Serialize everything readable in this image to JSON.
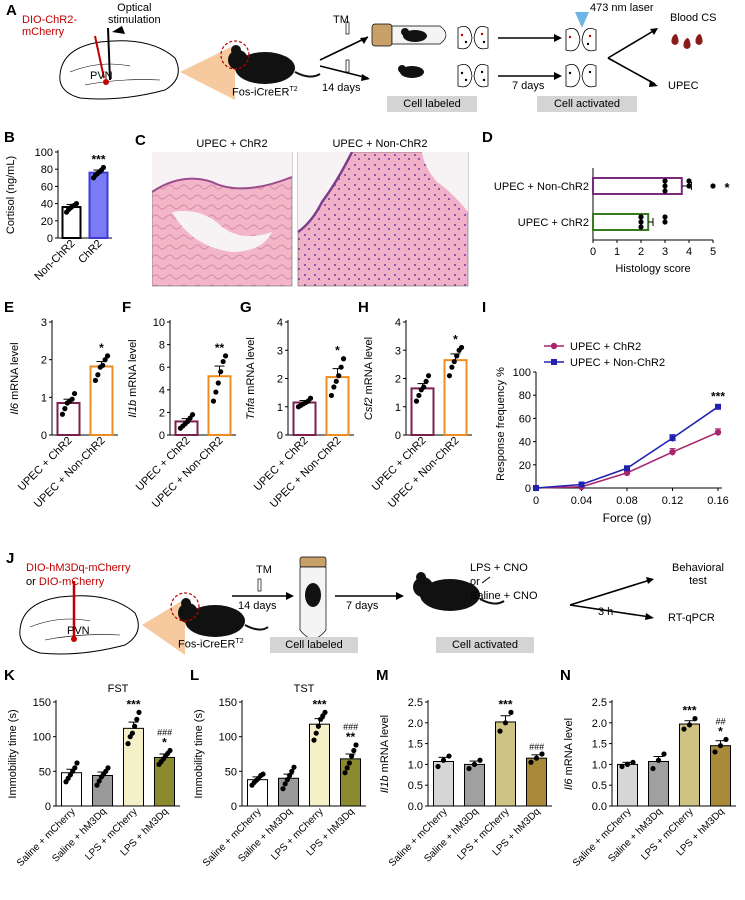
{
  "panels": {
    "A": {
      "letter": "A",
      "virus": "DIO-ChR2-\nmCherry",
      "stim": "Optical\nstimulation",
      "pvn": "PVN",
      "mouse": "Fos-iCreER",
      "mouse_sup": "T2",
      "tm": "TM",
      "days14": "14 days",
      "days7": "7 days",
      "laser": "473 nm laser",
      "blood": "Blood CS",
      "upec": "UPEC",
      "labeled": "Cell labeled",
      "activated": "Cell activated"
    },
    "J": {
      "letter": "J",
      "virus1": "DIO-hM3Dq-mCherry",
      "or": "or ",
      "virus2": "DIO-mCherry",
      "pvn": "PVN",
      "mouse": "Fos-iCreER",
      "mouse_sup": "T2",
      "tm": "TM",
      "days14": "14 days",
      "days7": "7 days",
      "treat1": "LPS + CNO",
      "treat_or": "or",
      "treat2": "Saline + CNO",
      "hours": "3 h",
      "out1": "Behavioral\ntest",
      "out2": "RT-qPCR",
      "labeled": "Cell labeled",
      "activated": "Cell activated"
    },
    "C": {
      "letter": "C",
      "left_title": "UPEC + ChR2",
      "right_title": "UPEC + Non-ChR2"
    }
  },
  "chart_data": [
    {
      "id": "B",
      "letter": "B",
      "type": "bar",
      "ylabel": "Cortisol (ng/mL)",
      "categories": [
        "Non-ChR2",
        "ChR2"
      ],
      "values": [
        36,
        76
      ],
      "err": [
        3,
        3
      ],
      "points": [
        [
          30,
          33,
          35,
          37,
          38,
          40
        ],
        [
          70,
          73,
          75,
          77,
          79,
          82
        ]
      ],
      "ylim": [
        0,
        100
      ],
      "yticks": [
        0,
        20,
        40,
        60,
        80,
        100
      ],
      "stars": [
        "",
        "***"
      ],
      "fills": [
        "#ffffff",
        "#7b7bf5"
      ],
      "strokes": [
        "#000000",
        "#3d3dd6"
      ]
    },
    {
      "id": "D",
      "letter": "D",
      "type": "bar-horizontal",
      "xlabel": "Histology score",
      "categories": [
        "UPEC + Non-ChR2",
        "UPEC + ChR2"
      ],
      "values": [
        3.7,
        2.3
      ],
      "err": [
        0.4,
        0.2
      ],
      "points": [
        [
          3,
          3,
          3,
          4,
          4,
          5
        ],
        [
          2,
          2,
          2,
          2,
          3,
          3
        ]
      ],
      "xlim": [
        0,
        5
      ],
      "xticks": [
        0,
        1,
        2,
        3,
        4,
        5
      ],
      "stars": [
        "*",
        ""
      ],
      "strokes": [
        "#7b2a7b",
        "#3a7a1e"
      ]
    },
    {
      "id": "E",
      "letter": "E",
      "type": "bar",
      "ylabel_italic": "Il6",
      "ylabel_rest": " mRNA level",
      "categories": [
        "UPEC + ChR2",
        "UPEC + Non-ChR2"
      ],
      "values": [
        0.85,
        1.82
      ],
      "err": [
        0.1,
        0.13
      ],
      "points": [
        [
          0.55,
          0.7,
          0.85,
          0.9,
          0.95,
          1.1
        ],
        [
          1.45,
          1.6,
          1.8,
          1.85,
          2.0,
          2.1
        ]
      ],
      "ylim": [
        0,
        3
      ],
      "yticks": [
        0,
        1,
        2,
        3
      ],
      "stars": [
        "",
        "*"
      ],
      "strokes": [
        "#7b1f4d",
        "#f08c1e"
      ]
    },
    {
      "id": "F",
      "letter": "F",
      "type": "bar",
      "ylabel_italic": "Il1b",
      "ylabel_rest": " mRNA level",
      "categories": [
        "UPEC + ChR2",
        "UPEC + Non-ChR2"
      ],
      "values": [
        1.2,
        5.2
      ],
      "err": [
        0.25,
        0.9
      ],
      "points": [
        [
          0.6,
          0.8,
          1.0,
          1.2,
          1.5,
          1.8
        ],
        [
          3.0,
          3.8,
          4.6,
          5.6,
          6.5,
          7.0
        ]
      ],
      "ylim": [
        0,
        10
      ],
      "yticks": [
        0,
        2,
        4,
        6,
        8,
        10
      ],
      "stars": [
        "",
        "**"
      ],
      "strokes": [
        "#7b1f4d",
        "#f08c1e"
      ]
    },
    {
      "id": "G",
      "letter": "G",
      "type": "bar",
      "ylabel_italic": "Tnfa",
      "ylabel_rest": " mRNA level",
      "categories": [
        "UPEC + ChR2",
        "UPEC + Non-ChR2"
      ],
      "values": [
        1.15,
        2.05
      ],
      "err": [
        0.07,
        0.3
      ],
      "points": [
        [
          1.0,
          1.05,
          1.1,
          1.15,
          1.2,
          1.3
        ],
        [
          1.4,
          1.7,
          1.9,
          2.1,
          2.4,
          2.7
        ]
      ],
      "ylim": [
        0,
        4
      ],
      "yticks": [
        0,
        1,
        2,
        3,
        4
      ],
      "stars": [
        "",
        "*"
      ],
      "strokes": [
        "#7b1f4d",
        "#f08c1e"
      ]
    },
    {
      "id": "H",
      "letter": "H",
      "type": "bar",
      "ylabel_italic": "Csf2",
      "ylabel_rest": " mRNA level",
      "categories": [
        "UPEC + ChR2",
        "UPEC + Non-ChR2"
      ],
      "values": [
        1.65,
        2.65
      ],
      "err": [
        0.17,
        0.22
      ],
      "points": [
        [
          1.2,
          1.4,
          1.6,
          1.7,
          1.9,
          2.1
        ],
        [
          2.1,
          2.4,
          2.6,
          2.8,
          3.0,
          3.1
        ]
      ],
      "ylim": [
        0,
        4
      ],
      "yticks": [
        0,
        1,
        2,
        3,
        4
      ],
      "stars": [
        "",
        "*"
      ],
      "strokes": [
        "#7b1f4d",
        "#f08c1e"
      ]
    },
    {
      "id": "I",
      "letter": "I",
      "type": "line",
      "xlabel": "Force (g)",
      "ylabel": "Response frequency %",
      "x": [
        0,
        0.04,
        0.08,
        0.12,
        0.16
      ],
      "xtick_labels": [
        "0",
        "0.04",
        "0.08",
        "0.12",
        "0.16"
      ],
      "ylim": [
        0,
        100
      ],
      "yticks": [
        0,
        20,
        40,
        60,
        80,
        100
      ],
      "series": [
        {
          "name": "UPEC + ChR2",
          "values": [
            0,
            1,
            13,
            31,
            48
          ],
          "err": [
            0,
            0.5,
            2,
            3,
            3
          ],
          "color": "#a8246e",
          "marker": "circle"
        },
        {
          "name": "UPEC + Non-ChR2",
          "values": [
            0,
            3,
            17,
            43,
            70
          ],
          "err": [
            0,
            1,
            2,
            3,
            2
          ],
          "color": "#2222b0",
          "marker": "square"
        }
      ],
      "annotation": "***"
    },
    {
      "id": "K",
      "letter": "K",
      "type": "bar",
      "title": "FST",
      "ylabel": "Immobility time (s)",
      "categories": [
        "Saline + mCherry",
        "Saline + hM3Dq",
        "LPS + mCherry",
        "LPS + hM3Dq"
      ],
      "values": [
        48,
        44,
        112,
        70
      ],
      "err": [
        5,
        5,
        9,
        5
      ],
      "points": [
        [
          35,
          40,
          45,
          50,
          55,
          62
        ],
        [
          30,
          36,
          42,
          46,
          50,
          55
        ],
        [
          90,
          100,
          105,
          115,
          125,
          135
        ],
        [
          60,
          64,
          68,
          72,
          76,
          80
        ]
      ],
      "ylim": [
        0,
        150
      ],
      "yticks": [
        0,
        50,
        100,
        150
      ],
      "stars": [
        "",
        "",
        "***",
        "*"
      ],
      "hashes": [
        "",
        "",
        "",
        "###"
      ],
      "fills": [
        "#ffffff",
        "#9a9a9a",
        "#f5f0c8",
        "#8c8a2e"
      ]
    },
    {
      "id": "L",
      "letter": "L",
      "type": "bar",
      "title": "TST",
      "ylabel": "Immobility time (s)",
      "categories": [
        "Saline + mCherry",
        "Saline + hM3Dq",
        "LPS + mCherry",
        "LPS + hM3Dq"
      ],
      "values": [
        38,
        40,
        118,
        68
      ],
      "err": [
        4,
        6,
        8,
        7
      ],
      "points": [
        [
          30,
          34,
          37,
          40,
          44,
          46
        ],
        [
          25,
          32,
          38,
          44,
          50,
          56
        ],
        [
          95,
          105,
          115,
          125,
          130,
          135
        ],
        [
          48,
          55,
          62,
          72,
          80,
          88
        ]
      ],
      "ylim": [
        0,
        150
      ],
      "yticks": [
        0,
        50,
        100,
        150
      ],
      "stars": [
        "",
        "",
        "***",
        "**"
      ],
      "hashes": [
        "",
        "",
        "",
        "###"
      ],
      "fills": [
        "#ffffff",
        "#9a9a9a",
        "#f5f0c8",
        "#8c8a2e"
      ]
    },
    {
      "id": "M",
      "letter": "M",
      "type": "bar",
      "ylabel_italic": "Il1b",
      "ylabel_rest": " mRNA level",
      "categories": [
        "Saline + mCherry",
        "Saline + hM3Dq",
        "LPS + mCherry",
        "LPS + hM3Dq"
      ],
      "values": [
        1.07,
        1.0,
        2.02,
        1.15
      ],
      "err": [
        0.1,
        0.08,
        0.15,
        0.08
      ],
      "points": [
        [
          0.95,
          1.1,
          1.2
        ],
        [
          0.9,
          1.0,
          1.1
        ],
        [
          1.8,
          2.0,
          2.25
        ],
        [
          1.05,
          1.15,
          1.25
        ]
      ],
      "ylim": [
        0,
        2.5
      ],
      "yticks": [
        0,
        0.5,
        1.0,
        1.5,
        2.0,
        2.5
      ],
      "stars": [
        "",
        "",
        "***",
        ""
      ],
      "hashes": [
        "",
        "",
        "",
        "###"
      ],
      "fills": [
        "#d6d6d6",
        "#a0a0a0",
        "#cfc383",
        "#a88a38"
      ]
    },
    {
      "id": "N",
      "letter": "N",
      "type": "bar",
      "ylabel_italic": "Il6",
      "ylabel_rest": " mRNA level",
      "categories": [
        "Saline + mCherry",
        "Saline + hM3Dq",
        "LPS + mCherry",
        "LPS + hM3Dq"
      ],
      "values": [
        1.0,
        1.07,
        1.97,
        1.45
      ],
      "err": [
        0.05,
        0.12,
        0.08,
        0.12
      ],
      "points": [
        [
          0.95,
          1.0,
          1.05
        ],
        [
          0.9,
          1.1,
          1.25
        ],
        [
          1.85,
          1.95,
          2.1
        ],
        [
          1.3,
          1.45,
          1.6
        ]
      ],
      "ylim": [
        0,
        2.5
      ],
      "yticks": [
        0,
        0.5,
        1.0,
        1.5,
        2.0,
        2.5
      ],
      "stars": [
        "",
        "",
        "***",
        "*"
      ],
      "hashes": [
        "",
        "",
        "",
        "##"
      ],
      "fills": [
        "#d6d6d6",
        "#a0a0a0",
        "#cfc383",
        "#a88a38"
      ]
    }
  ]
}
